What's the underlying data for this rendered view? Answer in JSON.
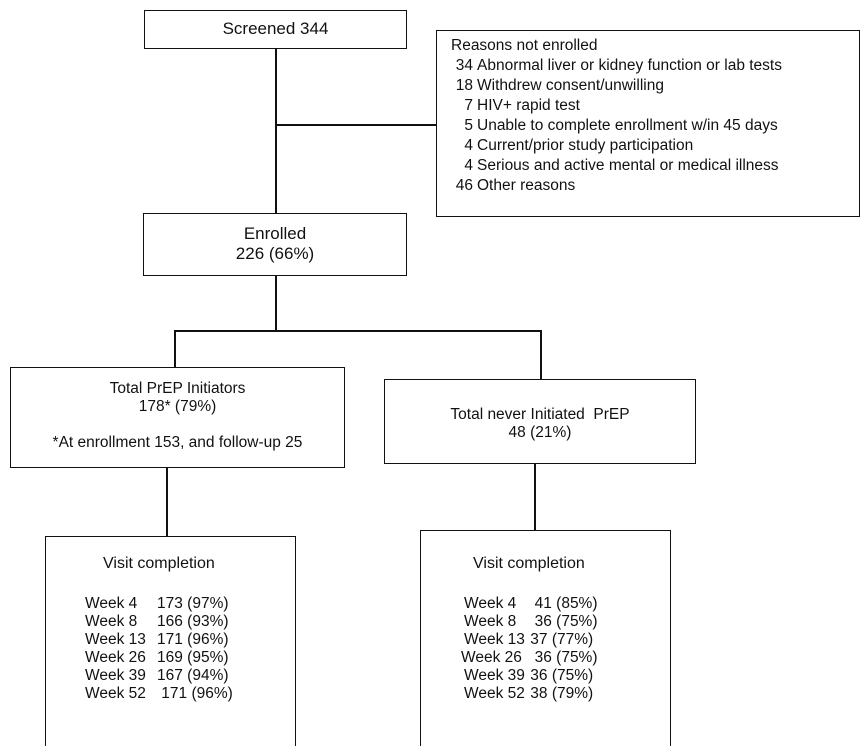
{
  "screened": {
    "label": "Screened 344"
  },
  "not_enrolled": {
    "title": "Reasons not enrolled",
    "reasons": [
      {
        "count": "34",
        "text": "Abnormal liver or kidney function or lab tests"
      },
      {
        "count": "18",
        "text": "Withdrew consent/unwilling"
      },
      {
        "count": "7",
        "text": "HIV+ rapid test"
      },
      {
        "count": "5",
        "text": "Unable to complete enrollment w/in 45 days"
      },
      {
        "count": "4",
        "text": "Current/prior study participation"
      },
      {
        "count": "4",
        "text": "Serious and active mental or medical illness"
      },
      {
        "count": "46",
        "text": "Other reasons"
      }
    ]
  },
  "enrolled": {
    "label": "Enrolled",
    "value": "226 (66%)"
  },
  "initiators": {
    "label": "Total PrEP Initiators",
    "value": "178* (79%)",
    "note": "*At enrollment 153, and follow-up 25"
  },
  "never_initiated": {
    "label": "Total never Initiated  PrEP",
    "value": "48 (21%)"
  },
  "visits_initiators": {
    "title": "Visit completion",
    "rows": [
      {
        "week": "Week 4",
        "value": "173 (97%)"
      },
      {
        "week": "Week 8",
        "value": "166 (93%)"
      },
      {
        "week": "Week 13",
        "value": "171 (96%)"
      },
      {
        "week": "Week 26",
        "value": "169 (95%)"
      },
      {
        "week": "Week 39",
        "value": "167 (94%)"
      },
      {
        "week": "Week 52",
        "value": " 171 (96%)"
      }
    ]
  },
  "visits_never": {
    "title": "Visit completion",
    "rows": [
      {
        "week": "Week 4",
        "value": "  41 (85%)"
      },
      {
        "week": "Week 8",
        "value": "  36 (75%)"
      },
      {
        "week": "Week 13",
        "value": " 37 (77%)"
      },
      {
        "week": "Week 26",
        "value": "  36 (75%)"
      },
      {
        "week": "Week 39",
        "value": " 36 (75%)"
      },
      {
        "week": "Week 52",
        "value": " 38 (79%)"
      }
    ]
  }
}
